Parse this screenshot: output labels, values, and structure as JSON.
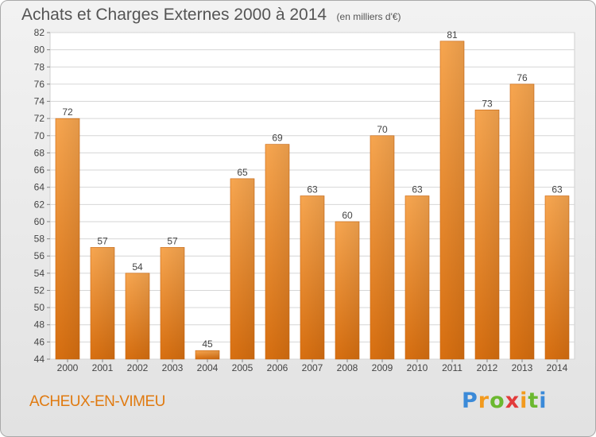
{
  "chart_data": {
    "type": "bar",
    "title": "Achats et Charges Externes 2000 à 2014",
    "subtitle": "(en milliers d'€)",
    "categories": [
      "2000",
      "2001",
      "2002",
      "2003",
      "2004",
      "2005",
      "2006",
      "2007",
      "2008",
      "2009",
      "2010",
      "2011",
      "2012",
      "2013",
      "2014"
    ],
    "values": [
      72,
      57,
      54,
      57,
      45,
      65,
      69,
      63,
      60,
      70,
      63,
      81,
      73,
      76,
      63
    ],
    "ylim": [
      44,
      82
    ],
    "yticks": [
      44,
      46,
      48,
      50,
      52,
      54,
      56,
      58,
      60,
      62,
      64,
      66,
      68,
      70,
      72,
      74,
      76,
      78,
      80,
      82
    ],
    "grid": true,
    "legend": "none",
    "bar_color": "#f0913a"
  },
  "footer": {
    "city": "ACHEUX-EN-VIMEU",
    "brand": "Proxiti"
  }
}
